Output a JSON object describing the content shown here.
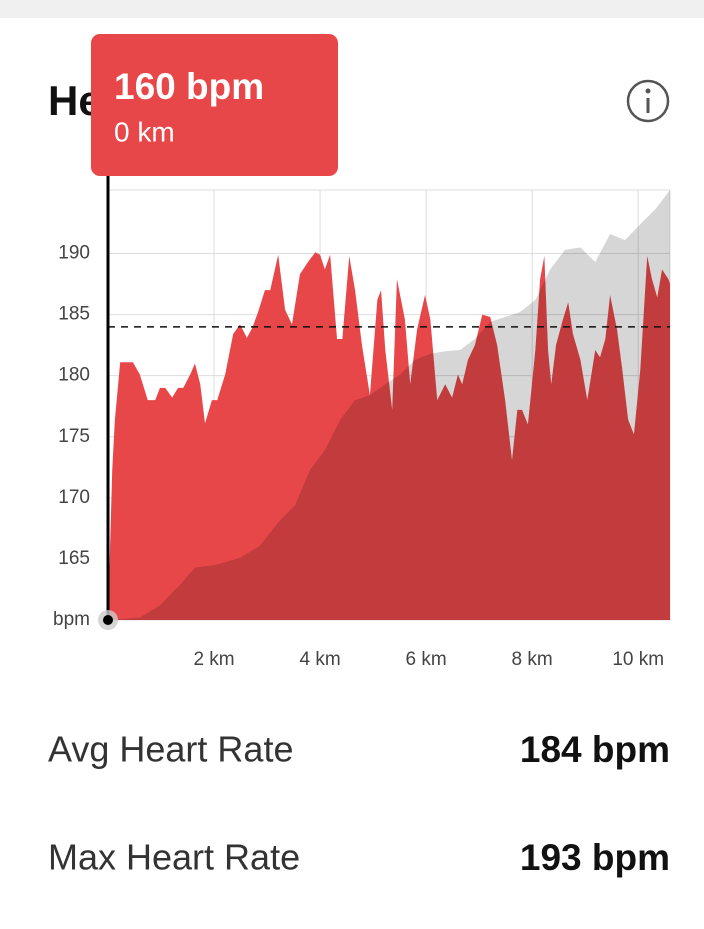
{
  "header": {
    "title": "Heart Rate"
  },
  "tooltip": {
    "value": "160 bpm",
    "distance": "0 km"
  },
  "chart_data": {
    "type": "area",
    "xlim": [
      0,
      10.6
    ],
    "ylim": [
      160,
      195.2
    ],
    "xticks": [
      {
        "value": 2,
        "label": "2 km"
      },
      {
        "value": 4,
        "label": "4 km"
      },
      {
        "value": 6,
        "label": "6 km"
      },
      {
        "value": 8,
        "label": "8 km"
      },
      {
        "value": 10,
        "label": "10 km"
      }
    ],
    "yticks": [
      {
        "value": 160,
        "label": "bpm"
      },
      165,
      170,
      175,
      180,
      185,
      190
    ],
    "grid": true,
    "reference_line": 184,
    "cursor_x": 0,
    "series": [
      {
        "color": "#e8474a",
        "x": [
          0.0,
          0.08,
          0.13,
          0.23,
          0.47,
          0.6,
          0.75,
          0.89,
          0.98,
          1.08,
          1.21,
          1.32,
          1.42,
          1.55,
          1.64,
          1.74,
          1.83,
          1.96,
          2.06,
          2.21,
          2.36,
          2.49,
          2.62,
          2.72,
          2.83,
          2.96,
          3.06,
          3.21,
          3.34,
          3.47,
          3.62,
          3.77,
          3.91,
          4.0,
          4.09,
          4.19,
          4.32,
          4.42,
          4.55,
          4.66,
          4.79,
          4.94,
          5.08,
          5.15,
          5.23,
          5.36,
          5.45,
          5.6,
          5.7,
          5.83,
          5.98,
          6.08,
          6.21,
          6.36,
          6.49,
          6.6,
          6.68,
          6.79,
          6.92,
          7.06,
          7.21,
          7.34,
          7.49,
          7.62,
          7.72,
          7.81,
          7.92,
          8.06,
          8.15,
          8.23,
          8.3,
          8.36,
          8.45,
          8.58,
          8.68,
          8.77,
          8.91,
          9.04,
          9.19,
          9.28,
          9.38,
          9.47,
          9.6,
          9.7,
          9.81,
          9.92,
          10.04,
          10.17,
          10.26,
          10.36,
          10.45,
          10.57,
          10.6
        ],
        "values": [
          160.0,
          172.3,
          176.4,
          181.1,
          181.1,
          180.1,
          178.0,
          178.0,
          179.0,
          179.0,
          178.2,
          179.0,
          179.0,
          180.1,
          181.0,
          179.3,
          176.1,
          178.0,
          178.0,
          180.1,
          183.4,
          184.2,
          183.1,
          183.9,
          185.2,
          187.0,
          187.0,
          189.9,
          185.4,
          184.2,
          188.3,
          189.3,
          190.1,
          189.9,
          188.7,
          189.9,
          183.0,
          183.0,
          189.8,
          187.0,
          182.5,
          178.4,
          186.2,
          187.0,
          182.1,
          177.2,
          187.9,
          184.6,
          179.3,
          183.8,
          186.6,
          184.6,
          178.0,
          179.3,
          178.2,
          180.1,
          179.3,
          181.3,
          182.5,
          185.0,
          184.8,
          182.5,
          178.0,
          173.1,
          177.2,
          177.2,
          176.0,
          182.1,
          187.9,
          189.8,
          182.1,
          179.3,
          182.5,
          184.6,
          186.0,
          183.4,
          181.3,
          178.0,
          182.1,
          181.5,
          183.0,
          186.6,
          183.8,
          180.5,
          176.4,
          175.2,
          180.5,
          189.8,
          187.9,
          186.4,
          188.7,
          187.9,
          187.5
        ]
      },
      {
        "color": "#d6d6d6",
        "x": [
          0.0,
          0.6,
          0.98,
          1.36,
          1.64,
          2.02,
          2.49,
          2.87,
          3.25,
          3.53,
          3.81,
          4.09,
          4.38,
          4.66,
          4.94,
          5.23,
          5.51,
          5.79,
          6.08,
          6.36,
          6.64,
          6.92,
          7.21,
          7.49,
          7.77,
          8.06,
          8.34,
          8.62,
          8.91,
          9.19,
          9.47,
          9.75,
          10.04,
          10.32,
          10.6
        ],
        "values": [
          160.0,
          160.2,
          161.2,
          162.9,
          164.3,
          164.5,
          165.1,
          166.1,
          168.2,
          169.4,
          172.3,
          173.9,
          176.4,
          178.0,
          178.4,
          179.3,
          180.1,
          181.3,
          181.8,
          182.0,
          182.1,
          183.0,
          184.4,
          184.8,
          185.2,
          186.2,
          188.7,
          190.3,
          190.5,
          189.3,
          191.6,
          191.1,
          192.4,
          193.6,
          195.2
        ]
      }
    ]
  },
  "stats": [
    {
      "label": "Avg Heart Rate",
      "value": "184 bpm"
    },
    {
      "label": "Max Heart Rate",
      "value": "193 bpm"
    }
  ]
}
